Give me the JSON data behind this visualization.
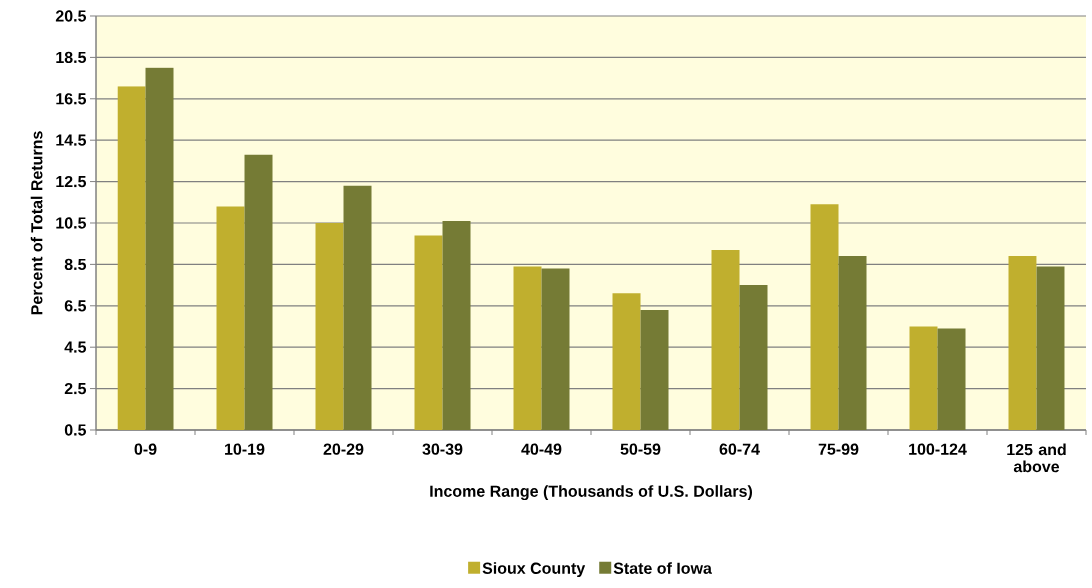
{
  "chart_data": {
    "type": "bar",
    "xlabel": "Income Range (Thousands of U.S. Dollars)",
    "ylabel": "Percent of Total Returns",
    "categories": [
      "0-9",
      "10-19",
      "20-29",
      "30-39",
      "40-49",
      "50-59",
      "60-74",
      "75-99",
      "100-124",
      "125 and above"
    ],
    "series": [
      {
        "name": "Sioux County",
        "color": "#c0af2e",
        "values": [
          17.1,
          11.3,
          10.5,
          9.9,
          8.4,
          7.1,
          9.2,
          11.4,
          5.5,
          8.9
        ]
      },
      {
        "name": "State of Iowa",
        "color": "#757b35",
        "values": [
          18.0,
          13.8,
          12.3,
          10.6,
          8.3,
          6.3,
          7.5,
          8.9,
          5.4,
          8.4
        ]
      }
    ],
    "ylim": [
      0.5,
      20.5
    ],
    "yticks": [
      0.5,
      2.5,
      4.5,
      6.5,
      8.5,
      10.5,
      12.5,
      14.5,
      16.5,
      18.5,
      20.5
    ],
    "grid": "y",
    "legend": "bottom"
  }
}
